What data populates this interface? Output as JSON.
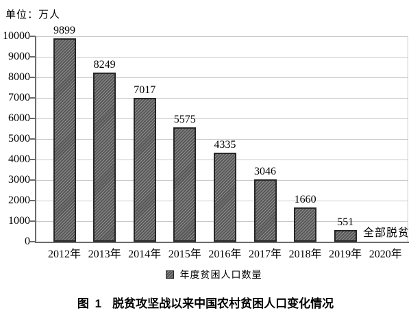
{
  "chart_data": {
    "type": "bar",
    "unit_label": "单位：万人",
    "categories": [
      "2012年",
      "2013年",
      "2014年",
      "2015年",
      "2016年",
      "2017年",
      "2018年",
      "2019年",
      "2020年"
    ],
    "values": [
      9899,
      8249,
      7017,
      5575,
      4335,
      3046,
      1660,
      551,
      null
    ],
    "value_labels": [
      "9899",
      "8249",
      "7017",
      "5575",
      "4335",
      "3046",
      "1660",
      "551",
      ""
    ],
    "annotation_2020": "全部脱贫",
    "legend_entries": [
      {
        "label": "年度贫困人口数量",
        "swatch": "hatched-dark-gray-square"
      }
    ],
    "legend_position": "bottom",
    "ylim": [
      0,
      10000
    ],
    "ytick_labels": [
      "0",
      "1000",
      "2000",
      "3000",
      "4000",
      "5000",
      "6000",
      "7000",
      "8000",
      "9000",
      "10000"
    ],
    "grid": true,
    "colors": {
      "bar_fill": "#585858",
      "bar_hatch_stripe": "#8f8f8f",
      "bar_border": "#262626",
      "gridline": "#c8c8c8",
      "axis": "#6b6b6b",
      "text": "#000000"
    }
  },
  "caption": {
    "figure_label": "图 1",
    "title": "脱贫攻坚战以来中国农村贫困人口变化情况"
  }
}
